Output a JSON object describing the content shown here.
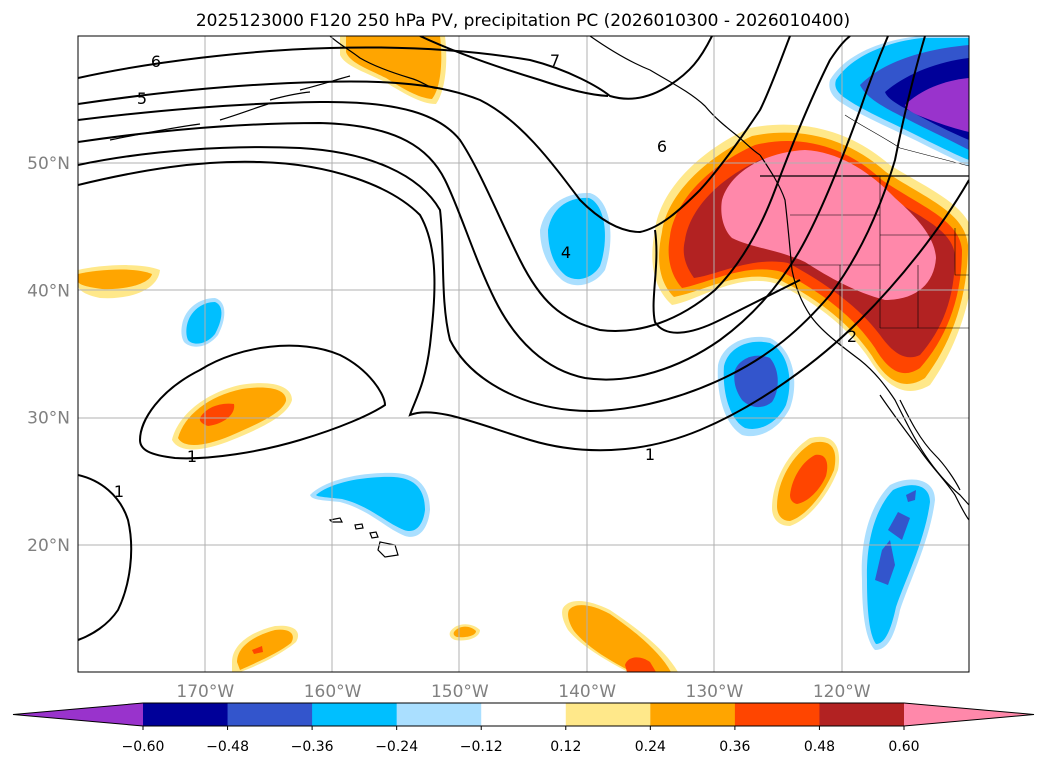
{
  "chart_data": {
    "type": "contour",
    "title": "2025123000 F120 250 hPa PV, precipitation PC (2026010300 - 2026010400)",
    "map": {
      "lon_range": [
        -180,
        -110
      ],
      "lat_range": [
        10,
        60
      ],
      "x_ticks": [
        "170°W",
        "160°W",
        "150°W",
        "140°W",
        "130°W",
        "120°W"
      ],
      "y_ticks": [
        "20°N",
        "30°N",
        "40°N",
        "50°N"
      ],
      "grid": true
    },
    "colorbar": {
      "ticks": [
        "−0.60",
        "−0.48",
        "−0.36",
        "−0.24",
        "−0.12",
        "0.12",
        "0.24",
        "0.36",
        "0.48",
        "0.60"
      ],
      "levels": [
        -0.6,
        -0.48,
        -0.36,
        -0.24,
        -0.12,
        0.12,
        0.24,
        0.36,
        0.48,
        0.6
      ],
      "colors": [
        "#9933cc",
        "#000099",
        "#3355cc",
        "#00bfff",
        "#aadfff",
        "#ffffff",
        "#ffe88a",
        "#ffa500",
        "#ff4500",
        "#b22222",
        "#ff88aa"
      ],
      "extend": "both"
    },
    "pv_contour_labels": [
      "6",
      "5",
      "7",
      "6",
      "4",
      "2",
      "1",
      "1",
      "1"
    ]
  }
}
